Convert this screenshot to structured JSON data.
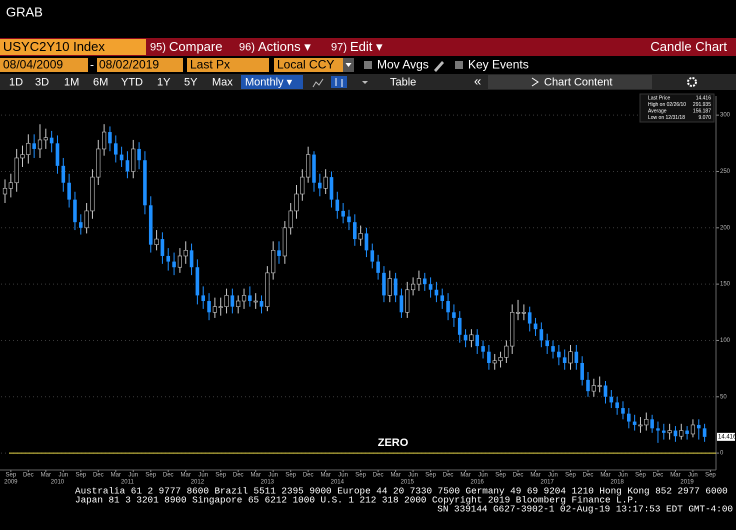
{
  "header": {
    "title": "GRAB"
  },
  "toolbar": {
    "security": "USYC2Y10 Index",
    "menus": [
      {
        "code": "95)",
        "label": "Compare"
      },
      {
        "code": "96)",
        "label": "Actions ▾"
      },
      {
        "code": "97)",
        "label": "Edit ▾"
      }
    ],
    "view": "Candle Chart"
  },
  "settings": {
    "start_date": "08/04/2009",
    "separator": "-",
    "end_date": "08/02/2019",
    "field": "Last Px",
    "currency": "Local CCY",
    "checkboxes": [
      "Mov Avgs",
      "Key Events"
    ]
  },
  "ranges": [
    "1D",
    "3D",
    "1M",
    "6M",
    "YTD",
    "1Y",
    "5Y",
    "Max"
  ],
  "periodicity": "Monthly ▾",
  "table": "Table",
  "collapse": "«",
  "content": "Chart Content",
  "footer": [
    "Australia 61 2 9777 8600 Brazil 5511 2395 9000 Europe 44 20 7330 7500 Germany 49 69 9204 1210 Hong Kong 852 2977 6000",
    "Japan 81 3 3201 8900      Singapore 65 6212 1000      U.S. 1 212 318 2000      Copyright 2019 Bloomberg Finance L.P.",
    "SN 339144 G627-3902-1 02-Aug-19 13:17:53 EDT  GMT-4:00"
  ],
  "chart_data": {
    "type": "candlestick",
    "annotation": "ZERO",
    "hline": 0,
    "hline_color": "#e8d84a",
    "up_color": "#000000",
    "up_stroke": "#c8c8c8",
    "down_color": "#1e8fff",
    "grid": true,
    "legend": [
      {
        "name": "Last Price",
        "value": 14.416
      },
      {
        "name": "High on 02/26/10",
        "value": 291.935
      },
      {
        "name": "Average",
        "value": 156.187
      },
      {
        "name": "Low on 12/31/18",
        "value": 9.07,
        "value_label": "9.070"
      }
    ],
    "ylim": [
      -15,
      317
    ],
    "yticks": [
      0,
      50,
      100,
      150,
      200,
      250,
      300
    ],
    "xticks": [
      {
        "value": 1,
        "label": "Sep"
      },
      {
        "value": 4,
        "label": "Dec"
      },
      {
        "value": 7,
        "label": "Mar"
      },
      {
        "value": 10,
        "label": "Jun"
      },
      {
        "value": 13,
        "label": "Sep"
      },
      {
        "value": 16,
        "label": "Dec"
      },
      {
        "value": 19,
        "label": "Mar"
      },
      {
        "value": 22,
        "label": "Jun"
      },
      {
        "value": 25,
        "label": "Sep"
      },
      {
        "value": 28,
        "label": "Dec"
      },
      {
        "value": 31,
        "label": "Mar"
      },
      {
        "value": 34,
        "label": "Jun"
      },
      {
        "value": 37,
        "label": "Sep"
      },
      {
        "value": 40,
        "label": "Dec"
      },
      {
        "value": 43,
        "label": "Mar"
      },
      {
        "value": 46,
        "label": "Jun"
      },
      {
        "value": 49,
        "label": "Sep"
      },
      {
        "value": 52,
        "label": "Dec"
      },
      {
        "value": 55,
        "label": "Mar"
      },
      {
        "value": 58,
        "label": "Jun"
      },
      {
        "value": 61,
        "label": "Sep"
      },
      {
        "value": 64,
        "label": "Dec"
      },
      {
        "value": 67,
        "label": "Mar"
      },
      {
        "value": 70,
        "label": "Jun"
      },
      {
        "value": 73,
        "label": "Sep"
      },
      {
        "value": 76,
        "label": "Dec"
      },
      {
        "value": 79,
        "label": "Mar"
      },
      {
        "value": 82,
        "label": "Jun"
      },
      {
        "value": 85,
        "label": "Sep"
      },
      {
        "value": 88,
        "label": "Dec"
      },
      {
        "value": 91,
        "label": "Mar"
      },
      {
        "value": 94,
        "label": "Jun"
      },
      {
        "value": 97,
        "label": "Sep"
      },
      {
        "value": 100,
        "label": "Dec"
      },
      {
        "value": 103,
        "label": "Mar"
      },
      {
        "value": 106,
        "label": "Jun"
      },
      {
        "value": 109,
        "label": "Sep"
      },
      {
        "value": 112,
        "label": "Dec"
      },
      {
        "value": 115,
        "label": "Mar"
      },
      {
        "value": 118,
        "label": "Jun"
      },
      {
        "value": 121,
        "label": "Sep"
      }
    ],
    "year_ticks": [
      {
        "value": 1,
        "label": "2009"
      },
      {
        "value": 9,
        "label": "2010"
      },
      {
        "value": 21,
        "label": "2011"
      },
      {
        "value": 33,
        "label": "2012"
      },
      {
        "value": 45,
        "label": "2013"
      },
      {
        "value": 57,
        "label": "2014"
      },
      {
        "value": 69,
        "label": "2015"
      },
      {
        "value": 81,
        "label": "2016"
      },
      {
        "value": 93,
        "label": "2017"
      },
      {
        "value": 105,
        "label": "2018"
      },
      {
        "value": 117,
        "label": "2019"
      }
    ],
    "series": [
      {
        "open": [
          230,
          235,
          240,
          262,
          265,
          275,
          270,
          278,
          280,
          275,
          255,
          240,
          225,
          205,
          200,
          215,
          245,
          270,
          285,
          275,
          265,
          260,
          250,
          270,
          260,
          220,
          185,
          190,
          175,
          170,
          165,
          175,
          180,
          165,
          140,
          135,
          125,
          130,
          130,
          140,
          130,
          135,
          140,
          135,
          135,
          130,
          160,
          180,
          175,
          200,
          215,
          230,
          245,
          265,
          240,
          235,
          245,
          225,
          215,
          210,
          205,
          190,
          195,
          180,
          170,
          160,
          140,
          155,
          140,
          125,
          145,
          150,
          155,
          150,
          145,
          140,
          135,
          125,
          120,
          105,
          100,
          105,
          95,
          90,
          80,
          82,
          85,
          95,
          125,
          125,
          125,
          115,
          110,
          100,
          95,
          90,
          85,
          80,
          90,
          80,
          65,
          55,
          60,
          60,
          50,
          45,
          40,
          35,
          28,
          25,
          25,
          30,
          22,
          20,
          18,
          20,
          15,
          20,
          17,
          25,
          22
        ],
        "high": [
          243,
          248,
          270,
          273,
          283,
          283,
          291.935,
          288,
          286,
          282,
          262,
          248,
          232,
          212,
          222,
          252,
          278,
          292,
          290,
          282,
          272,
          268,
          278,
          276,
          268,
          228,
          198,
          196,
          182,
          178,
          182,
          188,
          186,
          172,
          148,
          142,
          138,
          138,
          146,
          146,
          140,
          146,
          148,
          142,
          140,
          166,
          188,
          188,
          206,
          222,
          238,
          252,
          272,
          268,
          248,
          252,
          250,
          232,
          222,
          216,
          212,
          202,
          200,
          186,
          176,
          166,
          162,
          160,
          146,
          152,
          156,
          162,
          160,
          156,
          152,
          146,
          142,
          132,
          126,
          110,
          110,
          110,
          100,
          96,
          88,
          90,
          100,
          132,
          136,
          132,
          130,
          120,
          116,
          106,
          100,
          96,
          92,
          96,
          96,
          86,
          72,
          66,
          68,
          64,
          56,
          50,
          46,
          40,
          34,
          32,
          36,
          34,
          28,
          26,
          26,
          24,
          26,
          24,
          30,
          30,
          26
        ],
        "low": [
          222,
          227,
          232,
          254,
          257,
          262,
          262,
          270,
          267,
          248,
          232,
          218,
          198,
          194,
          195,
          208,
          238,
          264,
          268,
          258,
          254,
          244,
          244,
          252,
          212,
          178,
          180,
          168,
          162,
          158,
          160,
          168,
          158,
          132,
          128,
          118,
          120,
          122,
          124,
          124,
          124,
          128,
          130,
          128,
          124,
          126,
          154,
          168,
          168,
          194,
          208,
          224,
          240,
          232,
          228,
          230,
          218,
          208,
          204,
          198,
          184,
          184,
          174,
          164,
          154,
          134,
          134,
          134,
          120,
          120,
          140,
          144,
          144,
          138,
          134,
          128,
          118,
          112,
          98,
          94,
          94,
          88,
          84,
          74,
          74,
          76,
          80,
          88,
          118,
          118,
          108,
          104,
          94,
          88,
          84,
          78,
          74,
          74,
          74,
          60,
          50,
          50,
          54,
          44,
          40,
          34,
          30,
          22,
          20,
          18,
          20,
          18,
          9.07,
          12,
          12,
          10,
          12,
          12,
          14,
          12,
          10
        ],
        "close": [
          235,
          240,
          262,
          265,
          275,
          270,
          278,
          280,
          275,
          255,
          240,
          225,
          205,
          200,
          215,
          245,
          270,
          285,
          275,
          265,
          260,
          250,
          270,
          260,
          220,
          185,
          190,
          175,
          170,
          165,
          175,
          180,
          165,
          140,
          135,
          125,
          130,
          130,
          140,
          130,
          135,
          140,
          135,
          135,
          130,
          160,
          180,
          175,
          200,
          215,
          230,
          245,
          265,
          240,
          235,
          245,
          225,
          215,
          210,
          205,
          190,
          195,
          180,
          170,
          160,
          140,
          155,
          140,
          125,
          145,
          150,
          155,
          150,
          145,
          140,
          135,
          125,
          120,
          105,
          100,
          105,
          95,
          90,
          80,
          82,
          85,
          95,
          125,
          125,
          125,
          115,
          110,
          100,
          95,
          90,
          85,
          80,
          90,
          80,
          65,
          55,
          60,
          60,
          50,
          45,
          40,
          35,
          28,
          25,
          25,
          30,
          22,
          20,
          18,
          20,
          15,
          20,
          17,
          25,
          22,
          14.416
        ]
      }
    ]
  }
}
